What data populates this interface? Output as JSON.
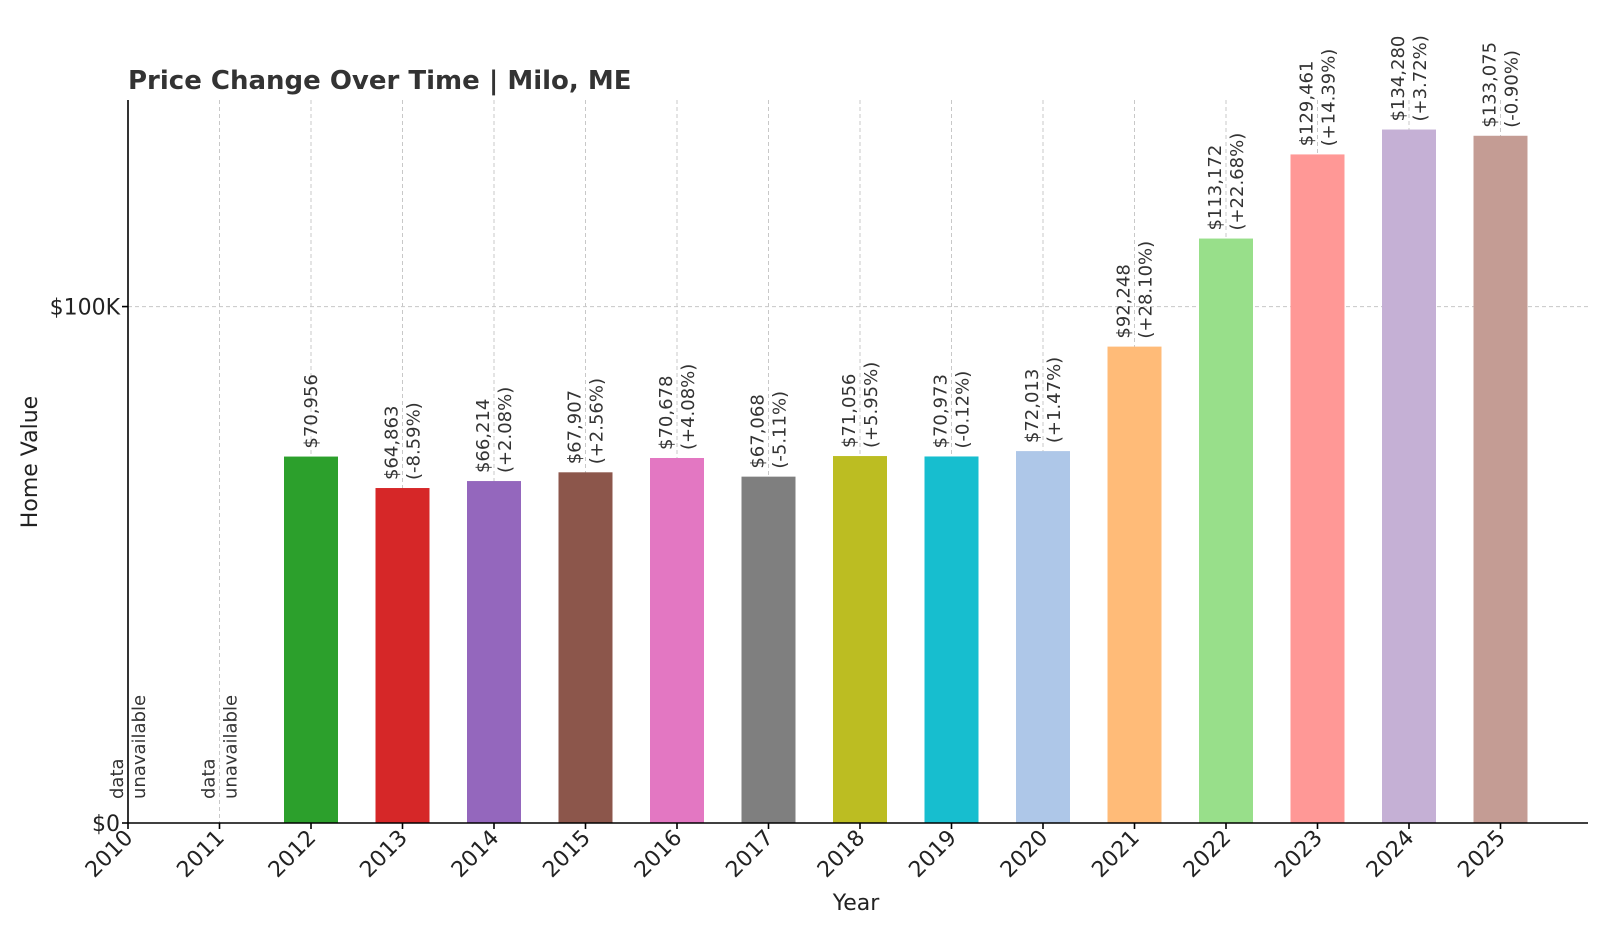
{
  "chart_data": {
    "type": "bar",
    "title": "Price Change Over Time | Milo, ME",
    "xlabel": "Year",
    "ylabel": "Home Value",
    "ylim": [
      0,
      140000
    ],
    "yticks": [
      {
        "value": 0,
        "label": "$0"
      },
      {
        "value": 100000,
        "label": "$100K"
      }
    ],
    "grid": true,
    "categories": [
      "2010",
      "2011",
      "2012",
      "2013",
      "2014",
      "2015",
      "2016",
      "2017",
      "2018",
      "2019",
      "2020",
      "2021",
      "2022",
      "2023",
      "2024",
      "2025"
    ],
    "values": [
      null,
      null,
      70956,
      64863,
      66214,
      67907,
      70678,
      67068,
      71056,
      70973,
      72013,
      92248,
      113172,
      129461,
      134280,
      133075
    ],
    "value_labels": [
      "",
      "",
      "$70,956",
      "$64,863",
      "$66,214",
      "$67,907",
      "$70,678",
      "$67,068",
      "$71,056",
      "$70,973",
      "$72,013",
      "$92,248",
      "$113,172",
      "$129,461",
      "$134,280",
      "$133,075"
    ],
    "change_labels": [
      "",
      "",
      "",
      "(-8.59%)",
      "(+2.08%)",
      "(+2.56%)",
      "(+4.08%)",
      "(-5.11%)",
      "(+5.95%)",
      "(-0.12%)",
      "(+1.47%)",
      "(+28.10%)",
      "(+22.68%)",
      "(+14.39%)",
      "(+3.72%)",
      "(-0.90%)"
    ],
    "unavailable_label": [
      "data",
      "unavailable"
    ],
    "colors": [
      "#1f77b4",
      "#ff7f0e",
      "#2ca02c",
      "#d62728",
      "#9467bd",
      "#8c564b",
      "#e377c2",
      "#7f7f7f",
      "#bcbd22",
      "#17becf",
      "#aec7e8",
      "#ffbb78",
      "#98df8a",
      "#ff9896",
      "#c5b0d5",
      "#c49c94"
    ]
  }
}
